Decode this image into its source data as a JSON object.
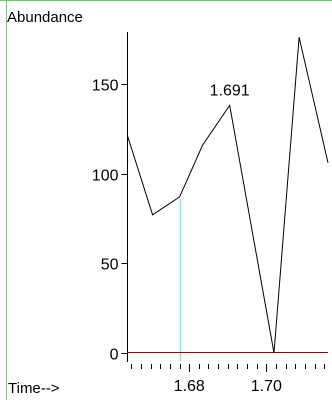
{
  "chart_data": {
    "type": "line",
    "xlabel": "Time-->",
    "ylabel": "Abundance",
    "xlim": [
      1.664,
      1.716
    ],
    "ylim": [
      -5,
      180
    ],
    "xticks": [
      1.68,
      1.7
    ],
    "xtick_labels": [
      "1.68",
      "1.70"
    ],
    "x_minor_tick_step": 0.0025,
    "yticks": [
      0,
      50,
      100,
      150
    ],
    "ytick_labels": [
      "0",
      "50",
      "100",
      "150"
    ],
    "series": [
      {
        "x": [
          1.664,
          1.6705,
          1.6775,
          1.6835,
          1.6905,
          1.702,
          1.7085,
          1.716
        ],
        "y": [
          121,
          77,
          87,
          116,
          138,
          0,
          176,
          106
        ]
      }
    ],
    "peak_annotation": {
      "x": 1.6905,
      "y": 138,
      "text": "1.691"
    },
    "marker_line": {
      "x": 1.6775,
      "color": "#7fe5e5"
    },
    "baseline": {
      "y": 0,
      "color": "#a00000"
    },
    "grid": false
  }
}
